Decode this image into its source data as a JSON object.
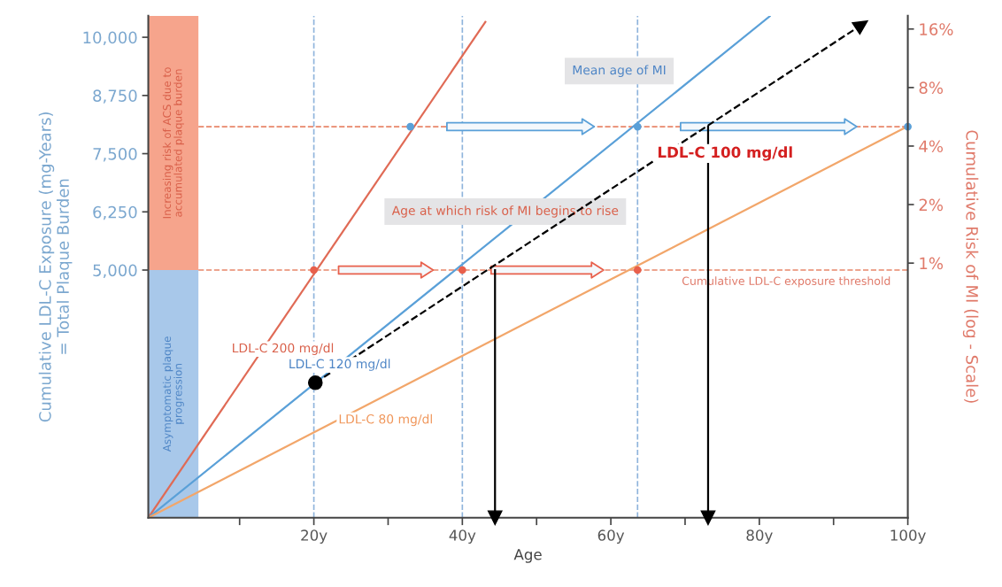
{
  "chart_data": {
    "type": "line",
    "xlabel": "Age",
    "ylabel": "Cumulative LDL-C Exposure (mg-Years)\n= Total Plaque Burden",
    "y2label": "Cumulative Risk of MI (log - Scale)",
    "xlim": [
      -2.3,
      100
    ],
    "xticks": [
      {
        "value": 10,
        "label": null
      },
      {
        "value": 20,
        "label": "20y"
      },
      {
        "value": 30,
        "label": null
      },
      {
        "value": 40,
        "label": "40y"
      },
      {
        "value": 50,
        "label": null
      },
      {
        "value": 60,
        "label": "60y"
      },
      {
        "value": 70,
        "label": null
      },
      {
        "value": 80,
        "label": "80y"
      },
      {
        "value": 90,
        "label": null
      },
      {
        "value": 100,
        "label": "100y"
      }
    ],
    "ylim": [
      -320,
      10460
    ],
    "yticks": [
      {
        "value": 5000,
        "label": "5,000"
      },
      {
        "value": 6250,
        "label": "6,250"
      },
      {
        "value": 7500,
        "label": "7,500"
      },
      {
        "value": 8750,
        "label": "8,750"
      },
      {
        "value": 10000,
        "label": "10,000"
      }
    ],
    "y2lim": [
      0.049,
      18.7
    ],
    "y2ticks": [
      {
        "value": 1,
        "label": "1%"
      },
      {
        "value": 2,
        "label": "2%"
      },
      {
        "value": 4,
        "label": "4%"
      },
      {
        "value": 8,
        "label": "8%"
      },
      {
        "value": 16,
        "label": "16%"
      }
    ],
    "log": "y2",
    "grid": false,
    "legend": false,
    "series": [
      {
        "name": "LDL-C 200 mg/dl",
        "color": "#e06a55",
        "x": [
          -2.3,
          43.1
        ],
        "values": [
          -320,
          10330
        ]
      },
      {
        "name": "LDL-C 120 mg/dl",
        "color": "#5aa0d8",
        "x": [
          -2.3,
          81.4
        ],
        "values": [
          -320,
          10450
        ]
      },
      {
        "name": "LDL-C 80 mg/dl",
        "color": "#f2a66a",
        "x": [
          -2.3,
          99.9
        ],
        "values": [
          -320,
          8080
        ]
      },
      {
        "name": "LDL-C 100 mg/dl",
        "marker": "triangle",
        "line_style": "dashed",
        "color": "#000000",
        "x": [
          20.2,
          93.8
        ],
        "values": [
          2580,
          10270
        ]
      },
      {
        "type": "scatter",
        "marker": "circle",
        "color": "#000000",
        "x": [
          20.2
        ],
        "values": [
          2580
        ]
      },
      {
        "type": "scatter",
        "marker": "circle",
        "color": "#e8604c",
        "x": [
          20,
          40,
          63.6
        ],
        "values": [
          5000,
          5000,
          5000
        ]
      },
      {
        "type": "scatter",
        "marker": "circle",
        "color": "#5aa0d8",
        "x": [
          33,
          63.6,
          100
        ],
        "values": [
          8080,
          8080,
          8080
        ]
      },
      {
        "marker": "triangle",
        "line_style": "solid",
        "color": "#000000",
        "x": [
          44.4,
          44.4
        ],
        "values": [
          5000,
          -320
        ]
      },
      {
        "marker": "triangle",
        "line_style": "solid",
        "color": "#000000",
        "x": [
          73.1,
          73.1
        ],
        "values": [
          8080,
          -320
        ]
      }
    ],
    "ref_lines": [
      {
        "axis": "y",
        "value": 5000,
        "color": "#e8866a",
        "line_style": "dashed"
      },
      {
        "axis": "y",
        "value": 8080,
        "color": "#e8866a",
        "line_style": "dashed"
      },
      {
        "axis": "x",
        "value": 20,
        "color": "#8fb4dc",
        "line_style": "dashed"
      },
      {
        "axis": "x",
        "value": 40,
        "color": "#8fb4dc",
        "line_style": "dashed"
      },
      {
        "axis": "x",
        "value": 63.6,
        "color": "#8fb4dc",
        "line_style": "dashed"
      }
    ],
    "bands": [
      {
        "axis": "y",
        "from": -320,
        "to": 5000,
        "label": "Asymptomatic plaque\nprogression",
        "color": "#a8c8ea"
      },
      {
        "axis": "y",
        "from": 5000,
        "to": 10460,
        "label": "Increasing risk of ACS due to\naccumulated plaque burden",
        "color": "#f6a48c"
      }
    ],
    "annotations": [
      "Mean age of MI",
      "Age at which risk of MI begins to rise",
      "Cumulative LDL-C exposure threshold"
    ]
  }
}
